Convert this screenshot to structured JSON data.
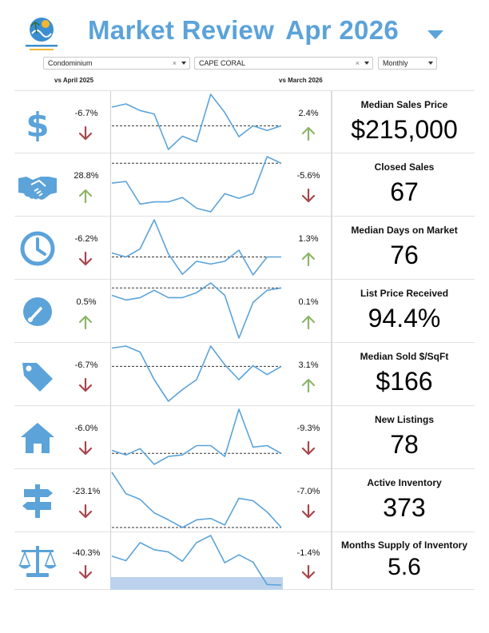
{
  "header": {
    "title": "Market Review",
    "period": "Apr 2026",
    "period_dropdown_icon": "chevron-down-icon",
    "logo_icon": "brokerage-logo"
  },
  "filters": {
    "property_type": "Condominium",
    "city": "CAPE CORAL",
    "frequency": "Monthly",
    "clear_glyph": "×"
  },
  "columns": {
    "yoy_label": "vs April 2025",
    "mom_label": "vs March 2026"
  },
  "colors": {
    "accent": "#5ba3d9",
    "up": "#8db56a",
    "down": "#a7474b",
    "spark_line": "#5ba3d9",
    "spark_highlight": "#bcd2ec"
  },
  "metrics": [
    {
      "icon": "dollar-icon",
      "name": "Median Sales Price",
      "value": "$215,000",
      "yoy": "-6.7%",
      "yoy_dir": "down",
      "mom": "2.4%",
      "mom_dir": "up",
      "series": [
        0.76,
        0.89,
        0.62,
        0.48,
        -0.96,
        -0.42,
        -0.65,
        1.28,
        0.54,
        -0.44,
        0.0,
        -0.19,
        0.0
      ],
      "reference": 0
    },
    {
      "icon": "handshake-icon",
      "name": "Closed Sales",
      "value": "67",
      "yoy": "28.8%",
      "yoy_dir": "up",
      "mom": "-5.6%",
      "mom_dir": "down",
      "series": [
        -0.72,
        -0.66,
        -1.48,
        -1.4,
        -1.4,
        -1.24,
        -1.63,
        -1.76,
        -1.1,
        -1.27,
        -1.1,
        0.24,
        0.0
      ],
      "reference": 0
    },
    {
      "icon": "clock-icon",
      "name": "Median Days on Market",
      "value": "76",
      "yoy": "-6.2%",
      "yoy_dir": "down",
      "mom": "1.3%",
      "mom_dir": "up",
      "series": [
        0.13,
        0.0,
        0.26,
        1.2,
        0.1,
        -0.56,
        -0.14,
        -0.23,
        -0.14,
        0.22,
        -0.58,
        0.0,
        0.0
      ],
      "reference": 0
    },
    {
      "icon": "gauge-icon",
      "name": "List Price Received",
      "value": "94.4%",
      "yoy": "0.5%",
      "yoy_dir": "up",
      "mom": "0.1%",
      "mom_dir": "up",
      "series": [
        -0.25,
        -0.41,
        -0.33,
        -0.08,
        -0.33,
        -0.33,
        -0.16,
        0.17,
        -0.25,
        -1.7,
        -0.49,
        -0.08,
        0.0
      ],
      "reference": 0
    },
    {
      "icon": "price-tag-icon",
      "name": "Median Sold $/SqFt",
      "value": "$166",
      "yoy": "-6.7%",
      "yoy_dir": "down",
      "mom": "3.1%",
      "mom_dir": "up",
      "series": [
        0.55,
        0.61,
        0.43,
        -0.4,
        -1.05,
        -0.7,
        -0.4,
        0.61,
        0.05,
        -0.4,
        0.02,
        -0.25,
        0.0
      ],
      "reference": 0
    },
    {
      "icon": "house-icon",
      "name": "New Listings",
      "value": "78",
      "yoy": "-6.0%",
      "yoy_dir": "down",
      "mom": "-9.3%",
      "mom_dir": "down",
      "series": [
        0.14,
        -0.07,
        0.22,
        -0.5,
        -0.14,
        -0.07,
        0.36,
        0.36,
        -0.14,
        2.02,
        0.29,
        0.36,
        0.0
      ],
      "reference": 0
    },
    {
      "icon": "signpost-icon",
      "name": "Active Inventory",
      "value": "373",
      "yoy": "-23.1%",
      "yoy_dir": "down",
      "mom": "-7.0%",
      "mom_dir": "down",
      "series": [
        2.45,
        1.5,
        1.25,
        0.65,
        0.34,
        0.0,
        0.34,
        0.4,
        0.11,
        1.3,
        1.19,
        0.69,
        0.0
      ],
      "reference": 0
    },
    {
      "icon": "balance-scale-icon",
      "name": "Months Supply of Inventory",
      "value": "5.6",
      "yoy": "-40.3%",
      "yoy_dir": "down",
      "mom": "-1.4%",
      "mom_dir": "down",
      "series": [
        0.89,
        0.61,
        1.75,
        1.3,
        1.16,
        0.57,
        1.75,
        2.2,
        0.48,
        0.98,
        0.52,
        -0.9,
        -0.93
      ],
      "reference": null,
      "highlight_band": true
    }
  ]
}
